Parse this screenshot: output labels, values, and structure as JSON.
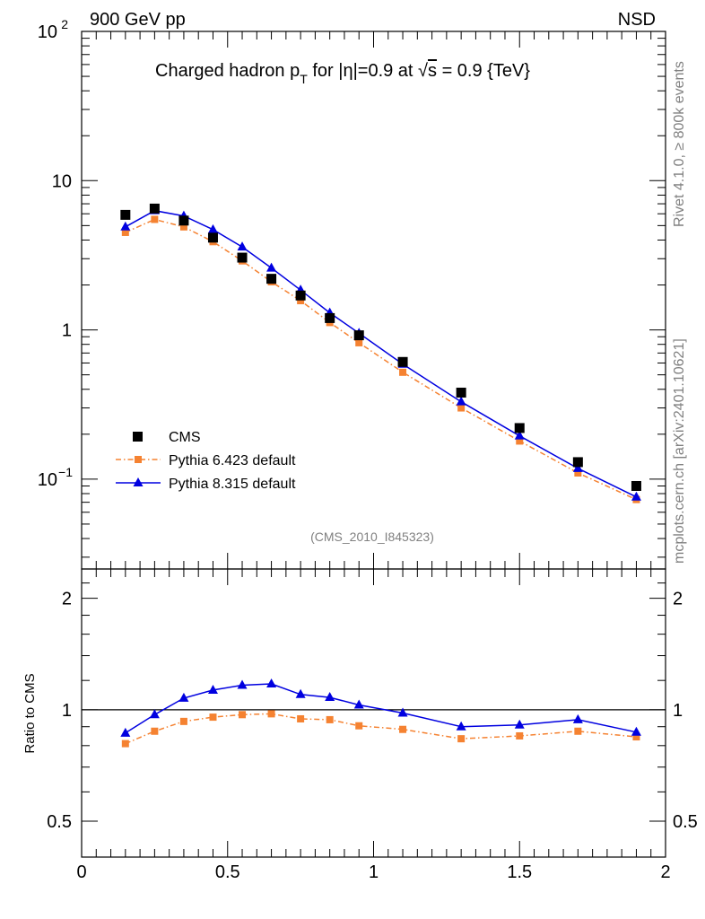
{
  "header": {
    "left_label": "900 GeV pp",
    "right_label": "NSD"
  },
  "side_labels": {
    "rivet": "Rivet 4.1.0, ≥ 800k events",
    "mcplots": "mcplots.cern.ch [arXiv:2401.10621]"
  },
  "title": {
    "part1": "Charged hadron p",
    "sub_T": "T",
    "part2": " for |η|=0.9 at √",
    "s": "s",
    "part3": " = 0.9 {TeV}"
  },
  "analysis_tag": "(CMS_2010_I845323)",
  "ratio_ylabel": "Ratio to CMS",
  "colors": {
    "cms": "#000000",
    "pythia6": "#f58231",
    "pythia8": "#0000e0"
  },
  "chart_data": [
    {
      "type": "scatter",
      "panel": "main",
      "yscale": "log",
      "xlim": [
        0,
        2
      ],
      "ylim": [
        0.025,
        100
      ],
      "ytick_labels": {
        "0.1": "10",
        "1": "1",
        "10": "10",
        "100": "10"
      },
      "ytick_exponents": {
        "0.1": "−1",
        "100": "2"
      },
      "x": [
        0.15,
        0.25,
        0.35,
        0.45,
        0.55,
        0.65,
        0.75,
        0.85,
        0.95,
        1.1,
        1.3,
        1.5,
        1.7,
        1.9
      ],
      "series": [
        {
          "name": "CMS",
          "style": "square-markers",
          "values": [
            5.9,
            6.5,
            5.4,
            4.15,
            3.05,
            2.2,
            1.7,
            1.2,
            0.92,
            0.61,
            0.38,
            0.22,
            0.13,
            0.09
          ]
        },
        {
          "name": "Pythia 6.423 default",
          "style": "dashdot-square",
          "values": [
            4.5,
            5.5,
            4.9,
            3.9,
            2.9,
            2.1,
            1.57,
            1.12,
            0.82,
            0.52,
            0.3,
            0.18,
            0.11,
            0.073
          ]
        },
        {
          "name": "Pythia 8.315 default",
          "style": "line-triangle",
          "values": [
            4.9,
            6.3,
            5.8,
            4.7,
            3.6,
            2.6,
            1.85,
            1.3,
            0.95,
            0.59,
            0.33,
            0.195,
            0.118,
            0.076
          ]
        }
      ],
      "legend_position": "lower-left"
    },
    {
      "type": "line",
      "panel": "ratio",
      "ylabel": "Ratio to CMS",
      "yscale": "log",
      "xlim": [
        0,
        2
      ],
      "ylim": [
        0.4,
        2.4
      ],
      "xtick_labels": [
        "0",
        "0.5",
        "1",
        "1.5",
        "2"
      ],
      "ytick_labels": [
        "0.5",
        "1",
        "2"
      ],
      "reference_line": 1,
      "x": [
        0.15,
        0.25,
        0.35,
        0.45,
        0.55,
        0.65,
        0.75,
        0.85,
        0.95,
        1.1,
        1.3,
        1.5,
        1.7,
        1.9
      ],
      "series": [
        {
          "name": "Pythia 6.423 default",
          "style": "dashdot-square",
          "values": [
            0.81,
            0.875,
            0.93,
            0.955,
            0.97,
            0.975,
            0.945,
            0.94,
            0.905,
            0.885,
            0.835,
            0.85,
            0.875,
            0.845
          ]
        },
        {
          "name": "Pythia 8.315 default",
          "style": "line-triangle",
          "values": [
            0.865,
            0.97,
            1.075,
            1.13,
            1.165,
            1.175,
            1.1,
            1.08,
            1.03,
            0.98,
            0.9,
            0.91,
            0.94,
            0.87
          ]
        }
      ]
    }
  ]
}
